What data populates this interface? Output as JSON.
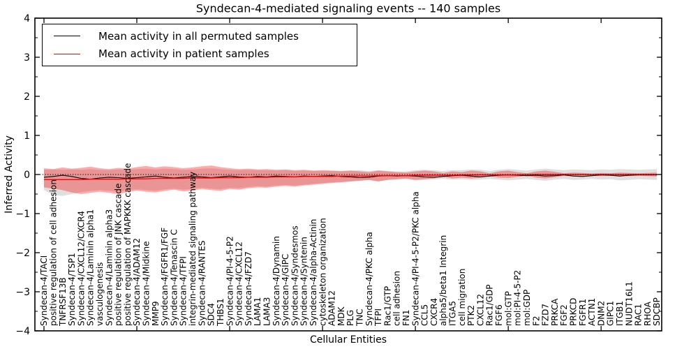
{
  "chart_data": {
    "type": "line",
    "title": "Syndecan-4-mediated signaling events -- 140 samples",
    "xlabel": "Cellular Entities",
    "ylabel": "Inferred Activity",
    "ylim": [
      -4,
      4
    ],
    "yticks": [
      4,
      3,
      2,
      1,
      0,
      -1,
      -2,
      -3,
      -4
    ],
    "y_minor_ticks": [
      3.5,
      2.5,
      1.5,
      0.5,
      -0.5,
      -1.5,
      -2.5,
      -3.5
    ],
    "x_major_tick_indices": [
      0,
      10,
      20,
      30,
      40,
      50,
      60
    ],
    "grid": false,
    "legend_position": "upper left",
    "legend": [
      "Mean activity in all permuted samples",
      "Mean activity in patient samples"
    ],
    "zero_line": {
      "y": 0,
      "style": "dotted",
      "color": "#000000"
    },
    "colors": {
      "permuted_line": "#000000",
      "patient_line": "#ff0000",
      "permuted_band": "#808080",
      "patient_band": "#ff0000"
    },
    "categories": [
      "Syndecan-4/TACI",
      "positive regulation of cell adhesion",
      "TNFRSF13B",
      "Syndecan-4/TSP1",
      "Syndecan-4/CXCL12/CXCR4",
      "Syndecan-4/Laminin alpha1",
      "vasculogenesis",
      "Syndecan-4/Laminin alpha3",
      "positive regulation of JNK cascade",
      "positive regulation of MAPKKK cascade",
      "Syndecan-4/ADAM12",
      "Syndecan-4/Midkine",
      "MMP9",
      "Syndecan-4/FGFR1/FGF",
      "Syndecan-4/Tenascin C",
      "Syndecan-4/TFPI",
      "integrin-mediated signaling pathway",
      "Syndecan-4/RANTES",
      "SDC4",
      "THBS1",
      "Syndecan-4/PI-4-5-P2",
      "Syndecan-4/CXCL12",
      "Syndecan-4/FZD7",
      "LAMA1",
      "LAMA3",
      "Syndecan-4/Dynamin",
      "Syndecan-4/GIPC",
      "Syndecan-4/Syndesmos",
      "Syndecan-4/Syntenin",
      "Syndecan-4/alpha-Actinin",
      "cytoskeleton organization",
      "ADAM12",
      "MDK",
      "PLG",
      "TNC",
      "Syndecan-4/PKC alpha",
      "TFPI",
      "Rac1/GTP",
      "cell adhesion",
      "FN1",
      "Syndecan-4/PI-4-5-P2/PKC alpha",
      "CCL5",
      "CXCR4",
      "alpha5/beta1 Integrin",
      "ITGA5",
      "cell migration",
      "PTK2",
      "CXCL12",
      "Rac1/GDP",
      "FGF6",
      "mol:GTP",
      "mol:PI-4-5-P2",
      "mol:GDP",
      "F2",
      "FZD7",
      "PRKCA",
      "FGF2",
      "PRKCD",
      "FGFR1",
      "ACTN1",
      "DNM2",
      "GIPC1",
      "ITGB1",
      "NUDT16L1",
      "RAC1",
      "RHOA",
      "SDCBP"
    ],
    "series": [
      {
        "name": "Mean activity in all permuted samples",
        "color": "#000000",
        "values": [
          -0.07,
          -0.05,
          -0.02,
          -0.05,
          -0.1,
          -0.12,
          -0.09,
          -0.07,
          -0.08,
          -0.1,
          -0.08,
          -0.06,
          -0.04,
          -0.07,
          -0.09,
          -0.07,
          -0.05,
          -0.06,
          -0.08,
          -0.06,
          -0.04,
          -0.06,
          -0.07,
          -0.05,
          -0.06,
          -0.04,
          -0.05,
          -0.06,
          -0.04,
          -0.05,
          -0.04,
          -0.03,
          -0.05,
          -0.06,
          -0.08,
          -0.07,
          -0.04,
          -0.03,
          -0.04,
          -0.03,
          -0.04,
          -0.06,
          -0.07,
          -0.05,
          -0.03,
          -0.02,
          -0.04,
          -0.06,
          -0.04,
          -0.02,
          -0.01,
          -0.02,
          -0.03,
          -0.02,
          -0.04,
          -0.03,
          -0.01,
          -0.04,
          -0.05,
          -0.03,
          -0.01,
          -0.02,
          -0.04,
          -0.02,
          -0.01,
          -0.01,
          -0.01
        ]
      },
      {
        "name": "Mean activity in patient samples",
        "color": "#ff0000",
        "values": [
          -0.13,
          -0.13,
          -0.13,
          -0.13,
          -0.13,
          -0.12,
          -0.12,
          -0.12,
          -0.12,
          -0.11,
          -0.11,
          -0.11,
          -0.1,
          -0.1,
          -0.1,
          -0.1,
          -0.09,
          -0.09,
          -0.09,
          -0.08,
          -0.08,
          -0.08,
          -0.07,
          -0.07,
          -0.07,
          -0.06,
          -0.06,
          -0.06,
          -0.05,
          -0.05,
          -0.05,
          -0.05,
          -0.04,
          -0.04,
          -0.04,
          -0.04,
          -0.03,
          -0.03,
          -0.03,
          -0.03,
          -0.02,
          -0.02,
          -0.02,
          -0.02,
          -0.02,
          -0.01,
          -0.01,
          -0.01,
          -0.01,
          -0.01,
          -0.01,
          -0.01,
          0,
          0,
          0,
          0,
          0,
          0,
          0,
          0,
          0,
          0,
          0,
          0,
          0,
          0,
          0
        ]
      }
    ],
    "bands": [
      {
        "name": "permuted samples std band",
        "fill": "#808080",
        "opacity": 0.25,
        "upper": [
          0.12,
          0.13,
          0.12,
          0.13,
          0.12,
          0.14,
          0.12,
          0.11,
          0.13,
          0.12,
          0.14,
          0.15,
          0.13,
          0.15,
          0.14,
          0.12,
          0.13,
          0.15,
          0.16,
          0.14,
          0.12,
          0.11,
          0.12,
          0.11,
          0.11,
          0.1,
          0.11,
          0.09,
          0.1,
          0.09,
          0.09,
          0.09,
          0.08,
          0.1,
          0.11,
          0.09,
          0.11,
          0.09,
          0.08,
          0.08,
          0.11,
          0.12,
          0.11,
          0.09,
          0.11,
          0.11,
          0.13,
          0.12,
          0.09,
          0.12,
          0.14,
          0.12,
          0.1,
          0.13,
          0.15,
          0.13,
          0.11,
          0.13,
          0.12,
          0.11,
          0.13,
          0.12,
          0.14,
          0.13,
          0.12,
          0.13,
          0.14
        ],
        "lower": [
          -0.4,
          -0.52,
          -0.55,
          -0.5,
          -0.45,
          -0.42,
          -0.4,
          -0.42,
          -0.44,
          -0.4,
          -0.38,
          -0.4,
          -0.42,
          -0.38,
          -0.36,
          -0.39,
          -0.37,
          -0.34,
          -0.36,
          -0.38,
          -0.34,
          -0.35,
          -0.32,
          -0.3,
          -0.31,
          -0.28,
          -0.27,
          -0.28,
          -0.26,
          -0.24,
          -0.22,
          -0.2,
          -0.19,
          -0.17,
          -0.16,
          -0.14,
          -0.17,
          -0.14,
          -0.13,
          -0.12,
          -0.15,
          -0.14,
          -0.13,
          -0.11,
          -0.13,
          -0.12,
          -0.14,
          -0.13,
          -0.11,
          -0.13,
          -0.15,
          -0.13,
          -0.11,
          -0.14,
          -0.16,
          -0.13,
          -0.11,
          -0.14,
          -0.13,
          -0.11,
          -0.13,
          -0.12,
          -0.15,
          -0.14,
          -0.12,
          -0.13,
          -0.14
        ]
      },
      {
        "name": "patient samples std band",
        "fill": "#ff0000",
        "opacity": 0.33,
        "upper": [
          0.16,
          0.14,
          0.18,
          0.15,
          0.17,
          0.2,
          0.16,
          0.14,
          0.17,
          0.15,
          0.19,
          0.22,
          0.18,
          0.21,
          0.19,
          0.16,
          0.18,
          0.21,
          0.23,
          0.19,
          0.16,
          0.14,
          0.15,
          0.13,
          0.14,
          0.12,
          0.13,
          0.11,
          0.12,
          0.1,
          0.11,
          0.1,
          0.09,
          0.1,
          0.08,
          0.06,
          0.1,
          0.08,
          0.06,
          0.05,
          0.08,
          0.1,
          0.08,
          0.04,
          0.08,
          0.06,
          0.1,
          0.08,
          0.03,
          0.08,
          0.1,
          0.06,
          0.03,
          0.08,
          0.1,
          0.07,
          0.03,
          0.05,
          0.04,
          0.02,
          0.04,
          0.03,
          0.05,
          0.04,
          0.03,
          0.04,
          0.05
        ],
        "lower": [
          -0.33,
          -0.36,
          -0.4,
          -0.46,
          -0.5,
          -0.47,
          -0.44,
          -0.47,
          -0.5,
          -0.45,
          -0.41,
          -0.44,
          -0.46,
          -0.42,
          -0.39,
          -0.43,
          -0.41,
          -0.37,
          -0.4,
          -0.42,
          -0.37,
          -0.39,
          -0.35,
          -0.33,
          -0.34,
          -0.31,
          -0.29,
          -0.31,
          -0.28,
          -0.26,
          -0.24,
          -0.22,
          -0.2,
          -0.18,
          -0.16,
          -0.14,
          -0.18,
          -0.14,
          -0.12,
          -0.1,
          -0.14,
          -0.12,
          -0.1,
          -0.06,
          -0.1,
          -0.08,
          -0.1,
          -0.08,
          -0.04,
          -0.08,
          -0.09,
          -0.06,
          -0.03,
          -0.08,
          -0.1,
          -0.07,
          -0.03,
          -0.05,
          -0.04,
          -0.02,
          -0.04,
          -0.03,
          -0.05,
          -0.04,
          -0.03,
          -0.04,
          -0.05
        ]
      }
    ]
  }
}
